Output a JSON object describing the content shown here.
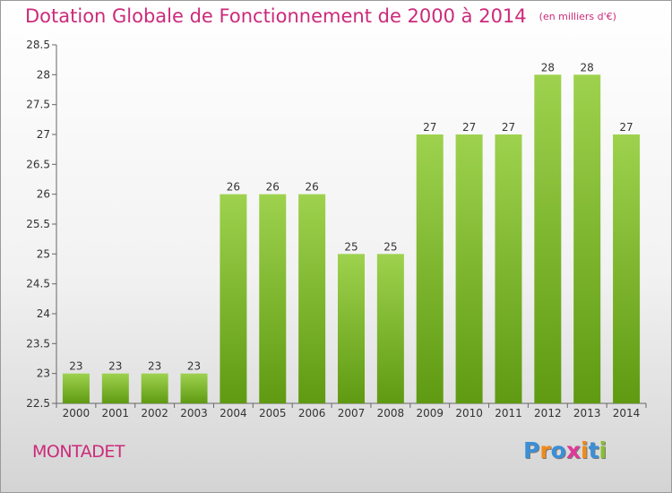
{
  "chart_data": {
    "type": "bar",
    "title": "Dotation Globale de Fonctionnement de 2000 à 2014",
    "subtitle": "(en milliers d'€)",
    "xlabel": "",
    "ylabel": "",
    "categories": [
      "2000",
      "2001",
      "2002",
      "2003",
      "2004",
      "2005",
      "2006",
      "2007",
      "2008",
      "2009",
      "2010",
      "2011",
      "2012",
      "2013",
      "2014"
    ],
    "values": [
      23,
      23,
      23,
      23,
      26,
      26,
      26,
      25,
      25,
      27,
      27,
      27,
      28,
      28,
      27
    ],
    "ylim": [
      22.5,
      28.5
    ],
    "yticks": [
      22.5,
      23,
      23.5,
      24,
      24.5,
      25,
      25.5,
      26,
      26.5,
      27,
      27.5,
      28,
      28.5
    ],
    "bar_color_top": "#9ed24e",
    "bar_color_bottom": "#5f9a12",
    "grid": false
  },
  "footer": {
    "place_name": "MONTADET",
    "logo_letters": [
      "P",
      "r",
      "o",
      "x",
      "i",
      "t",
      "i"
    ],
    "logo_colors": [
      "#3a8fd8",
      "#f08a1c",
      "#3a8fd8",
      "#e0389a",
      "#f08a1c",
      "#3a8fd8",
      "#88c030"
    ]
  },
  "colors": {
    "accent": "#cc2a7a",
    "axis": "#666666",
    "text": "#333333"
  }
}
